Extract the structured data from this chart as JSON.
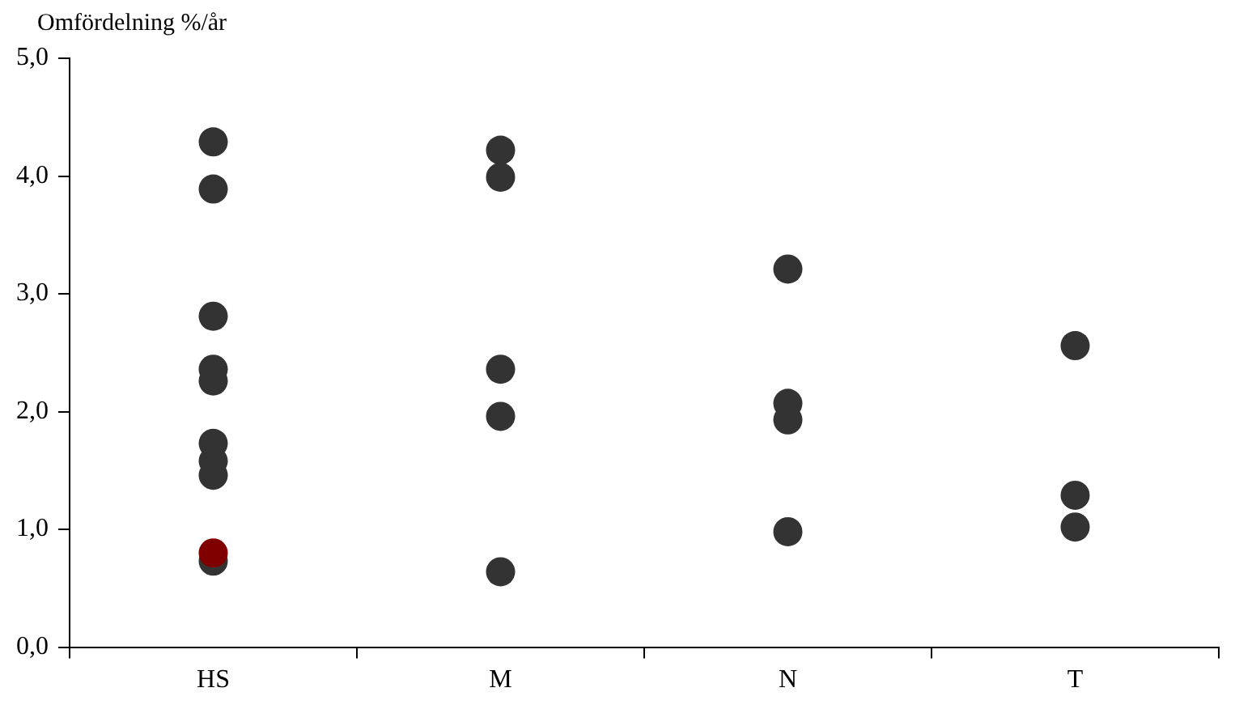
{
  "chart_data": {
    "type": "scatter",
    "ylabel": "Omfördelning %/år",
    "categories": [
      "HS",
      "M",
      "N",
      "T"
    ],
    "ylim": [
      0,
      5
    ],
    "yticks": [
      {
        "value": 0,
        "label": "0,0"
      },
      {
        "value": 1,
        "label": "1,0"
      },
      {
        "value": 2,
        "label": "2,0"
      },
      {
        "value": 3,
        "label": "3,0"
      },
      {
        "value": 4,
        "label": "4,0"
      },
      {
        "value": 5,
        "label": "5,0"
      }
    ],
    "grid": false,
    "legend": false,
    "marker": "circle",
    "series": [
      {
        "color": "#333333",
        "x": [
          "HS",
          "HS",
          "HS",
          "HS",
          "HS",
          "HS",
          "HS",
          "HS",
          "HS",
          "M",
          "M",
          "M",
          "M",
          "M",
          "N",
          "N",
          "N",
          "N",
          "T",
          "T",
          "T"
        ],
        "values": [
          4.29,
          3.89,
          2.81,
          2.36,
          2.26,
          1.73,
          1.58,
          1.46,
          0.73,
          4.22,
          3.99,
          2.36,
          1.96,
          0.64,
          3.21,
          2.07,
          1.93,
          0.98,
          2.56,
          1.29,
          1.02
        ]
      },
      {
        "color": "#800000",
        "x": [
          "HS"
        ],
        "values": [
          0.8
        ]
      }
    ]
  }
}
